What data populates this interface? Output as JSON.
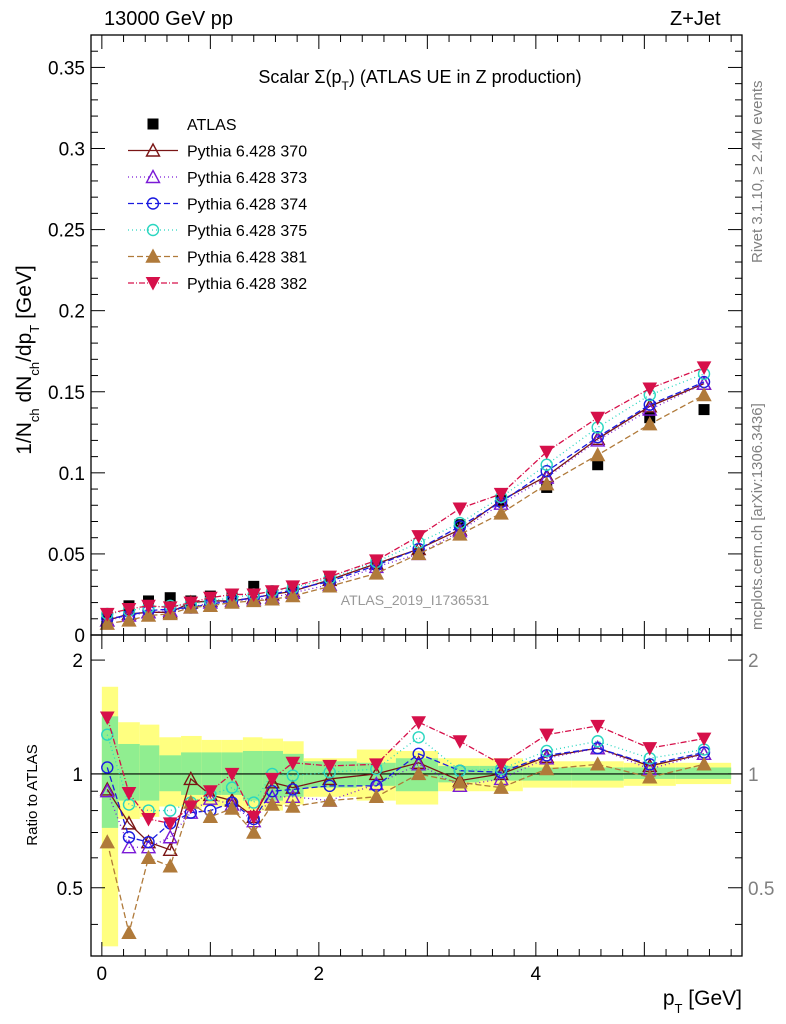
{
  "header": {
    "left": "13000 GeV pp",
    "right": "Z+Jet"
  },
  "side": {
    "rivet": "Rivet 3.1.10, ≥ 2.4M events",
    "mcplots": "mcplots.cern.ch [arXiv:1306.3436]"
  },
  "chart_data": {
    "type": "scatter",
    "title": "Scalar Σ(p_T) (ATLAS UE in Z production)",
    "analysis_label": "ATLAS_2019_I1736531",
    "xlabel": "p_T [GeV]",
    "ylabel": "1/N_ch dN_ch/dp_T [GeV]",
    "ratio_ylabel": "Ratio to ATLAS",
    "xlim": [
      -0.1,
      5.9
    ],
    "ylim": [
      0,
      0.37
    ],
    "ratio_ylim": [
      0.33,
      2.33
    ],
    "xticks": [
      0,
      2,
      4
    ],
    "yticks": [
      0,
      0.05,
      0.1,
      0.15,
      0.2,
      0.25,
      0.3,
      0.35
    ],
    "yticklabels": [
      "0",
      "0.05",
      "0.1",
      "0.15",
      "0.2",
      "0.25",
      "0.3",
      "0.35"
    ],
    "ratio_yticks": [
      0.5,
      1,
      2
    ],
    "x": [
      0.05,
      0.25,
      0.43,
      0.63,
      0.82,
      1.0,
      1.2,
      1.4,
      1.57,
      1.76,
      2.1,
      2.53,
      2.92,
      3.3,
      3.68,
      4.1,
      4.57,
      5.05,
      5.55
    ],
    "series": [
      {
        "name": "ATLAS",
        "color": "#000000",
        "marker": "square",
        "dash": "none",
        "values": [
          0.01,
          0.018,
          0.021,
          0.023,
          0.021,
          0.024,
          0.025,
          0.03,
          0.027,
          0.029,
          0.035,
          0.044,
          0.05,
          0.068,
          0.083,
          0.091,
          0.105,
          0.134,
          0.139
        ],
        "ratio": [
          1,
          1,
          1,
          1,
          1,
          1,
          1,
          1,
          1,
          1,
          1,
          1,
          1,
          1,
          1,
          1,
          1,
          1,
          1
        ]
      },
      {
        "name": "Pythia 6.428 370",
        "color": "#7a1515",
        "marker": "triangle-open",
        "dash": "none",
        "values": [
          0.009,
          0.013,
          0.014,
          0.014,
          0.02,
          0.021,
          0.021,
          0.023,
          0.025,
          0.027,
          0.034,
          0.044,
          0.053,
          0.065,
          0.083,
          0.098,
          0.121,
          0.141,
          0.155
        ],
        "ratio": [
          0.91,
          0.74,
          0.66,
          0.63,
          0.97,
          0.88,
          0.85,
          0.77,
          0.95,
          0.92,
          0.97,
          1.0,
          1.07,
          0.96,
          1.0,
          1.11,
          1.17,
          1.05,
          1.13
        ]
      },
      {
        "name": "Pythia 6.428 373",
        "color": "#7a1ad6",
        "marker": "triangle-open",
        "dash": "1,3",
        "values": [
          0.009,
          0.012,
          0.014,
          0.015,
          0.017,
          0.02,
          0.021,
          0.022,
          0.023,
          0.026,
          0.031,
          0.042,
          0.05,
          0.064,
          0.081,
          0.097,
          0.12,
          0.139,
          0.155
        ],
        "ratio": [
          0.9,
          0.64,
          0.64,
          0.68,
          0.79,
          0.86,
          0.83,
          0.75,
          0.87,
          0.87,
          0.85,
          0.94,
          1.06,
          0.93,
          0.97,
          1.1,
          1.17,
          1.03,
          1.13
        ]
      },
      {
        "name": "Pythia 6.428 374",
        "color": "#1a1ae0",
        "marker": "circle-open",
        "dash": "6,3",
        "values": [
          0.01,
          0.012,
          0.015,
          0.016,
          0.017,
          0.019,
          0.021,
          0.023,
          0.025,
          0.028,
          0.033,
          0.043,
          0.053,
          0.067,
          0.082,
          0.101,
          0.122,
          0.142,
          0.156
        ],
        "ratio": [
          1.04,
          0.68,
          0.66,
          0.74,
          0.79,
          0.8,
          0.84,
          0.76,
          0.9,
          0.91,
          0.93,
          0.93,
          1.13,
          1.02,
          1.01,
          1.12,
          1.17,
          1.06,
          1.14
        ]
      },
      {
        "name": "Pythia 6.428 375",
        "color": "#2ad6c0",
        "marker": "circle-open",
        "dash": "1,3",
        "values": [
          0.013,
          0.015,
          0.017,
          0.018,
          0.019,
          0.021,
          0.023,
          0.025,
          0.027,
          0.029,
          0.035,
          0.045,
          0.057,
          0.069,
          0.085,
          0.105,
          0.128,
          0.148,
          0.161
        ],
        "ratio": [
          1.27,
          0.83,
          0.8,
          0.8,
          0.84,
          0.88,
          0.92,
          0.84,
          1.0,
          0.99,
          1.01,
          1.03,
          1.25,
          1.02,
          1.03,
          1.15,
          1.22,
          1.1,
          1.16
        ]
      },
      {
        "name": "Pythia 6.428 381",
        "color": "#b07a3a",
        "marker": "triangle-filled",
        "dash": "6,3",
        "values": [
          0.007,
          0.009,
          0.012,
          0.013,
          0.017,
          0.018,
          0.02,
          0.021,
          0.022,
          0.024,
          0.03,
          0.038,
          0.05,
          0.062,
          0.075,
          0.093,
          0.111,
          0.13,
          0.148
        ],
        "ratio": [
          0.66,
          0.38,
          0.6,
          0.57,
          0.84,
          0.77,
          0.81,
          0.7,
          0.83,
          0.82,
          0.85,
          0.87,
          1.0,
          0.95,
          0.92,
          1.03,
          1.06,
          0.98,
          1.06
        ]
      },
      {
        "name": "Pythia 6.428 382",
        "color": "#d6104a",
        "marker": "triangle-down-filled",
        "dash": "6,2,1,2",
        "values": [
          0.013,
          0.016,
          0.018,
          0.017,
          0.02,
          0.023,
          0.025,
          0.025,
          0.027,
          0.03,
          0.036,
          0.046,
          0.061,
          0.078,
          0.087,
          0.113,
          0.134,
          0.152,
          0.165
        ],
        "ratio": [
          1.41,
          0.89,
          0.76,
          0.74,
          0.82,
          0.9,
          1.0,
          0.77,
          0.97,
          1.07,
          1.05,
          1.06,
          1.37,
          1.22,
          1.06,
          1.27,
          1.34,
          1.17,
          1.24
        ]
      }
    ],
    "ratio_bands": {
      "edges": [
        0,
        0.15,
        0.35,
        0.53,
        0.73,
        0.92,
        1.1,
        1.3,
        1.48,
        1.67,
        1.86,
        2.35,
        2.71,
        3.1,
        3.48,
        3.88,
        4.33,
        4.81,
        5.29,
        5.8
      ],
      "stat": [
        [
          0.72,
          1.42
        ],
        [
          0.85,
          1.2
        ],
        [
          0.85,
          1.19
        ],
        [
          0.9,
          1.12
        ],
        [
          0.88,
          1.14
        ],
        [
          0.88,
          1.14
        ],
        [
          0.88,
          1.14
        ],
        [
          0.85,
          1.15
        ],
        [
          0.85,
          1.15
        ],
        [
          0.87,
          1.13
        ],
        [
          0.92,
          1.08
        ],
        [
          0.93,
          1.07
        ],
        [
          0.9,
          1.1
        ],
        [
          0.95,
          1.05
        ],
        [
          0.96,
          1.05
        ],
        [
          0.96,
          1.04
        ],
        [
          0.96,
          1.04
        ],
        [
          0.97,
          1.04
        ],
        [
          0.97,
          1.04
        ]
      ],
      "total": [
        [
          0.35,
          1.7
        ],
        [
          0.76,
          1.37
        ],
        [
          0.77,
          1.35
        ],
        [
          0.82,
          1.25
        ],
        [
          0.81,
          1.26
        ],
        [
          0.82,
          1.23
        ],
        [
          0.82,
          1.23
        ],
        [
          0.8,
          1.25
        ],
        [
          0.8,
          1.24
        ],
        [
          0.83,
          1.22
        ],
        [
          0.87,
          1.1
        ],
        [
          0.85,
          1.16
        ],
        [
          0.83,
          1.15
        ],
        [
          0.9,
          1.1
        ],
        [
          0.9,
          1.1
        ],
        [
          0.92,
          1.08
        ],
        [
          0.92,
          1.08
        ],
        [
          0.93,
          1.07
        ],
        [
          0.94,
          1.07
        ]
      ],
      "stat_color": "#90ee90",
      "total_color": "#ffff80"
    }
  }
}
